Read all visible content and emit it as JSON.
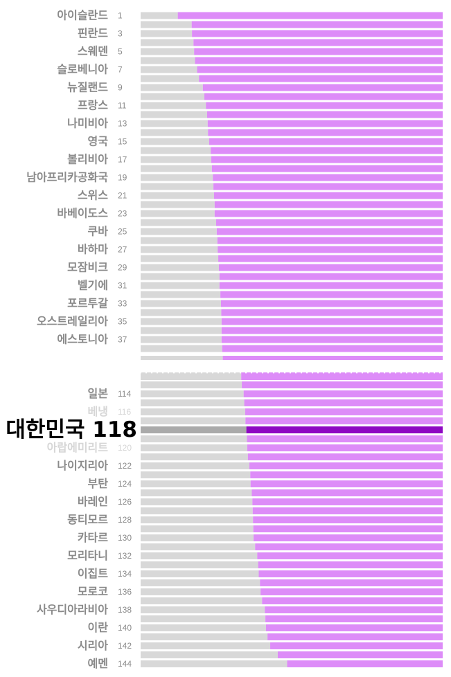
{
  "colors": {
    "male_bar": "#d8d8d8",
    "female_bar": "#dd8cf8",
    "highlight_male_bar": "#aaaaaa",
    "highlight_female_bar": "#8e08c2",
    "label": "#8a8a8a",
    "highlight_label": "#000000",
    "break_marks": "#ebebeb"
  },
  "chart_data": {
    "type": "bar",
    "orientation": "horizontal",
    "stacked": true,
    "xlim": [
      0,
      1
    ],
    "axis_break": "between rank 37 and rank 114",
    "series": [
      {
        "color": "#d8d8d8"
      },
      {
        "color": "#dd8cf8"
      }
    ],
    "highlight": {
      "country": "대한민국",
      "rank": 118
    },
    "sections": [
      {
        "rows": [
          {
            "rank": 1,
            "country": "아이슬란드",
            "labeled": true,
            "value": 0.123
          },
          {
            "rank": 2,
            "labeled": false,
            "value": 0.169
          },
          {
            "rank": 3,
            "country": "핀란드",
            "labeled": true,
            "value": 0.17
          },
          {
            "rank": 4,
            "labeled": false,
            "value": 0.175
          },
          {
            "rank": 5,
            "country": "스웨덴",
            "labeled": true,
            "value": 0.177
          },
          {
            "rank": 6,
            "labeled": false,
            "value": 0.18
          },
          {
            "rank": 7,
            "country": "슬로베니아",
            "labeled": true,
            "value": 0.187
          },
          {
            "rank": 8,
            "labeled": false,
            "value": 0.193
          },
          {
            "rank": 9,
            "country": "뉴질랜드",
            "labeled": true,
            "value": 0.206
          },
          {
            "rank": 10,
            "labeled": false,
            "value": 0.211
          },
          {
            "rank": 11,
            "country": "프랑스",
            "labeled": true,
            "value": 0.216
          },
          {
            "rank": 12,
            "labeled": false,
            "value": 0.22
          },
          {
            "rank": 13,
            "country": "나미비아",
            "labeled": true,
            "value": 0.222
          },
          {
            "rank": 14,
            "labeled": false,
            "value": 0.223
          },
          {
            "rank": 15,
            "country": "영국",
            "labeled": true,
            "value": 0.227
          },
          {
            "rank": 16,
            "labeled": false,
            "value": 0.232
          },
          {
            "rank": 17,
            "country": "볼리비아",
            "labeled": true,
            "value": 0.234
          },
          {
            "rank": 18,
            "labeled": false,
            "value": 0.236
          },
          {
            "rank": 19,
            "country": "남아프리카공화국",
            "labeled": true,
            "value": 0.239
          },
          {
            "rank": 20,
            "labeled": false,
            "value": 0.241
          },
          {
            "rank": 21,
            "country": "스위스",
            "labeled": true,
            "value": 0.243
          },
          {
            "rank": 22,
            "labeled": false,
            "value": 0.245
          },
          {
            "rank": 23,
            "country": "바베이도스",
            "labeled": true,
            "value": 0.245
          },
          {
            "rank": 24,
            "labeled": false,
            "value": 0.25
          },
          {
            "rank": 25,
            "country": "쿠바",
            "labeled": true,
            "value": 0.252
          },
          {
            "rank": 26,
            "labeled": false,
            "value": 0.254
          },
          {
            "rank": 27,
            "country": "바하마",
            "labeled": true,
            "value": 0.255
          },
          {
            "rank": 28,
            "labeled": false,
            "value": 0.257
          },
          {
            "rank": 29,
            "country": "모잠비크",
            "labeled": true,
            "value": 0.259
          },
          {
            "rank": 30,
            "labeled": false,
            "value": 0.261
          },
          {
            "rank": 31,
            "country": "벨기에",
            "labeled": true,
            "value": 0.261
          },
          {
            "rank": 32,
            "labeled": false,
            "value": 0.264
          },
          {
            "rank": 33,
            "country": "포르투갈",
            "labeled": true,
            "value": 0.266
          },
          {
            "rank": 34,
            "labeled": false,
            "value": 0.267
          },
          {
            "rank": 35,
            "country": "오스트레일리아",
            "labeled": true,
            "value": 0.268
          },
          {
            "rank": 36,
            "labeled": false,
            "value": 0.268
          },
          {
            "rank": 37,
            "country": "에스토니아",
            "labeled": true,
            "value": 0.268
          },
          {
            "rank": 38,
            "labeled": false,
            "value": 0.27
          }
        ]
      },
      {
        "rows": [
          {
            "rank": 113,
            "labeled": false,
            "value": 0.335
          },
          {
            "rank": 114,
            "country": "일본",
            "labeled": true,
            "value": 0.341
          },
          {
            "rank": 115,
            "labeled": false,
            "value": 0.343
          },
          {
            "rank": 116,
            "country": "베냉",
            "labeled": true,
            "faded": true,
            "value": 0.346
          },
          {
            "rank": 117,
            "labeled": false,
            "value": 0.347
          },
          {
            "rank": 118,
            "country": "대한민국",
            "labeled": true,
            "highlight": true,
            "value": 0.35
          },
          {
            "rank": 119,
            "labeled": false,
            "value": 0.352
          },
          {
            "rank": 120,
            "country": "아랍에미리트",
            "labeled": true,
            "faded": true,
            "value": 0.353
          },
          {
            "rank": 121,
            "labeled": false,
            "value": 0.355
          },
          {
            "rank": 122,
            "country": "나이지리아",
            "labeled": true,
            "value": 0.36
          },
          {
            "rank": 123,
            "labeled": false,
            "value": 0.363
          },
          {
            "rank": 124,
            "country": "부탄",
            "labeled": true,
            "value": 0.364
          },
          {
            "rank": 125,
            "labeled": false,
            "value": 0.368
          },
          {
            "rank": 126,
            "country": "바레인",
            "labeled": true,
            "value": 0.37
          },
          {
            "rank": 127,
            "labeled": false,
            "value": 0.371
          },
          {
            "rank": 128,
            "country": "동티모르",
            "labeled": true,
            "value": 0.372
          },
          {
            "rank": 129,
            "labeled": false,
            "value": 0.373
          },
          {
            "rank": 130,
            "country": "카타르",
            "labeled": true,
            "value": 0.374
          },
          {
            "rank": 131,
            "labeled": false,
            "value": 0.379
          },
          {
            "rank": 132,
            "country": "모리타니",
            "labeled": true,
            "value": 0.386
          },
          {
            "rank": 133,
            "labeled": false,
            "value": 0.389
          },
          {
            "rank": 134,
            "country": "이집트",
            "labeled": true,
            "value": 0.391
          },
          {
            "rank": 135,
            "labeled": false,
            "value": 0.395
          },
          {
            "rank": 136,
            "country": "모로코",
            "labeled": true,
            "value": 0.397
          },
          {
            "rank": 137,
            "labeled": false,
            "value": 0.402
          },
          {
            "rank": 138,
            "country": "사우디아라비아",
            "labeled": true,
            "value": 0.411
          },
          {
            "rank": 139,
            "labeled": false,
            "value": 0.413
          },
          {
            "rank": 140,
            "country": "이란",
            "labeled": true,
            "value": 0.415
          },
          {
            "rank": 141,
            "labeled": false,
            "value": 0.42
          },
          {
            "rank": 142,
            "country": "시리아",
            "labeled": true,
            "value": 0.429
          },
          {
            "rank": 143,
            "labeled": false,
            "value": 0.454
          },
          {
            "rank": 144,
            "country": "예멘",
            "labeled": true,
            "value": 0.485
          }
        ]
      }
    ]
  }
}
